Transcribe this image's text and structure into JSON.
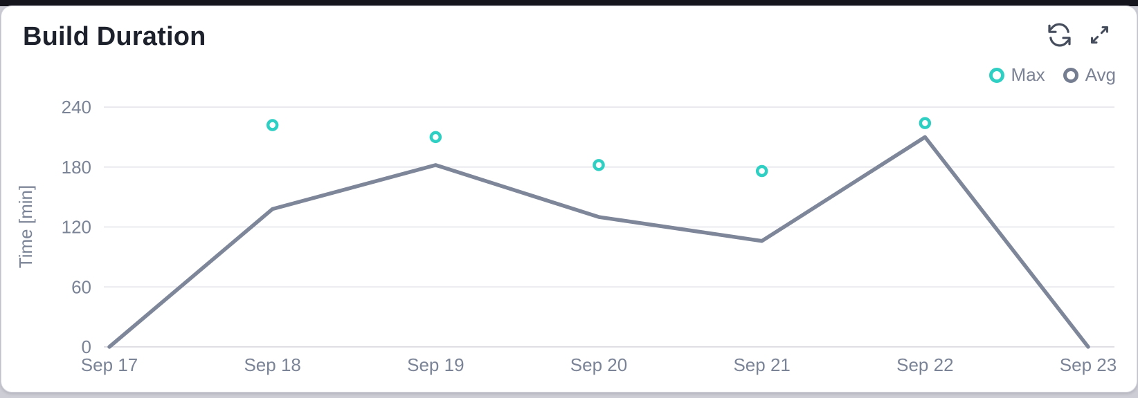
{
  "card": {
    "title": "Build Duration",
    "background": "#ffffff",
    "border_color": "#d7d7e0"
  },
  "toolbar": {
    "icons": [
      {
        "name": "refresh-icon"
      },
      {
        "name": "expand-icon"
      }
    ],
    "icon_color": "#454d5c"
  },
  "legend": {
    "position": "top-right",
    "items": [
      {
        "label": "Max",
        "color": "#2fcfc4"
      },
      {
        "label": "Avg",
        "color": "#757d90"
      }
    ]
  },
  "chart_data": {
    "type": "line",
    "title": "Build Duration",
    "x": [
      "Sep 17",
      "Sep 18",
      "Sep 19",
      "Sep 20",
      "Sep 21",
      "Sep 22",
      "Sep 23"
    ],
    "series": [
      {
        "name": "Max",
        "type": "scatter",
        "color": "#2fcfc4",
        "values": [
          null,
          222,
          210,
          182,
          176,
          224,
          null
        ]
      },
      {
        "name": "Avg",
        "type": "line",
        "color": "#7e8699",
        "values": [
          0,
          138,
          182,
          130,
          106,
          210,
          0
        ]
      }
    ],
    "xlabel": "",
    "ylabel": "Time [min]",
    "yticks": [
      0,
      60,
      120,
      180,
      240
    ],
    "ylim": [
      0,
      240
    ],
    "grid": "horizontal",
    "grid_color": "#e2e2e9",
    "zero_line_color": "#d4d4dc",
    "axis_text_color": "#7b8496",
    "legend_position": "top-right"
  }
}
